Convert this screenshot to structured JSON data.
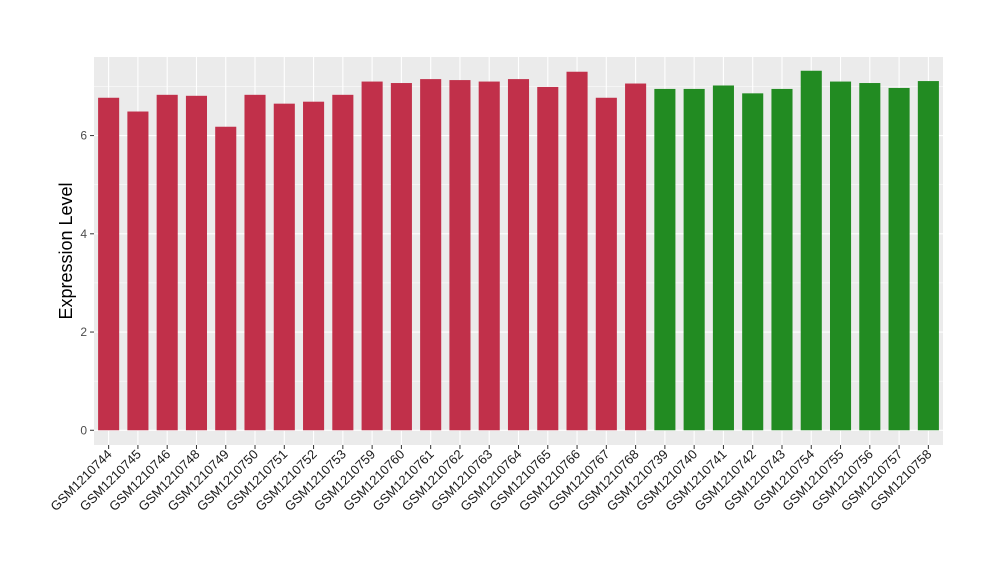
{
  "chart_data": {
    "type": "bar",
    "ylabel": "Expression Level",
    "xlabel": "",
    "ylim": [
      -0.3,
      7.6
    ],
    "yticks": [
      0,
      2,
      4,
      6
    ],
    "grid": true,
    "colors": {
      "red": "#c1304a",
      "green": "#228b22",
      "panel": "#ebebeb",
      "gridline": "#ffffff"
    },
    "categories": [
      "GSM1210744",
      "GSM1210745",
      "GSM1210746",
      "GSM1210748",
      "GSM1210749",
      "GSM1210750",
      "GSM1210751",
      "GSM1210752",
      "GSM1210753",
      "GSM1210759",
      "GSM1210760",
      "GSM1210761",
      "GSM1210762",
      "GSM1210763",
      "GSM1210764",
      "GSM1210765",
      "GSM1210766",
      "GSM1210767",
      "GSM1210768",
      "GSM1210739",
      "GSM1210740",
      "GSM1210741",
      "GSM1210742",
      "GSM1210743",
      "GSM1210754",
      "GSM1210755",
      "GSM1210756",
      "GSM1210757",
      "GSM1210758"
    ],
    "values": [
      6.77,
      6.49,
      6.83,
      6.81,
      6.18,
      6.83,
      6.65,
      6.69,
      6.83,
      7.1,
      7.07,
      7.15,
      7.13,
      7.1,
      7.15,
      6.99,
      7.3,
      6.77,
      7.06,
      6.95,
      6.95,
      7.02,
      6.86,
      6.95,
      7.32,
      7.1,
      7.07,
      6.97,
      7.11
    ],
    "groups": [
      "red",
      "red",
      "red",
      "red",
      "red",
      "red",
      "red",
      "red",
      "red",
      "red",
      "red",
      "red",
      "red",
      "red",
      "red",
      "red",
      "red",
      "red",
      "red",
      "green",
      "green",
      "green",
      "green",
      "green",
      "green",
      "green",
      "green",
      "green",
      "green"
    ]
  }
}
